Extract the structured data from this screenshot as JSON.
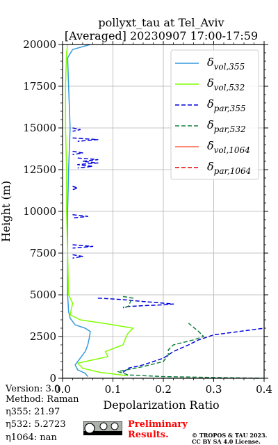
{
  "chart_data": {
    "type": "line",
    "title": [
      "pollyxt_tau at Tel_Aviv",
      "[Averaged] 20230907 17:00-17:59"
    ],
    "xlabel": "Depolarization Ratio",
    "ylabel": "Height (m)",
    "xlim": [
      0,
      0.4
    ],
    "ylim": [
      0,
      20000
    ],
    "xticks": [
      "0.0",
      "0.1",
      "0.2",
      "0.3",
      "0.4"
    ],
    "yticks": [
      "0",
      "2500",
      "5000",
      "7500",
      "10000",
      "12500",
      "15000",
      "17500",
      "20000"
    ],
    "grid": true,
    "legend_position": "top-right",
    "series": [
      {
        "name": "δvol,355",
        "label_main": "δ",
        "label_sub": "vol,355",
        "color": "#3399dd",
        "dash": "solid",
        "points": [
          [
            0.05,
            100
          ],
          [
            0.045,
            300
          ],
          [
            0.03,
            500
          ],
          [
            0.025,
            800
          ],
          [
            0.035,
            1200
          ],
          [
            0.045,
            1600
          ],
          [
            0.05,
            2000
          ],
          [
            0.053,
            2400
          ],
          [
            0.055,
            2800
          ],
          [
            0.045,
            3000
          ],
          [
            0.025,
            3200
          ],
          [
            0.015,
            3600
          ],
          [
            0.012,
            4000
          ],
          [
            0.01,
            5000
          ],
          [
            0.01,
            7500
          ],
          [
            0.01,
            10000
          ],
          [
            0.012,
            12500
          ],
          [
            0.015,
            15000
          ],
          [
            0.012,
            17500
          ],
          [
            0.01,
            19200
          ],
          [
            0.02,
            19700
          ],
          [
            0.055,
            20000
          ]
        ]
      },
      {
        "name": "δvol,532",
        "label_main": "δ",
        "label_sub": "vol,532",
        "color": "#80ff00",
        "dash": "solid",
        "points": [
          [
            0.13,
            150
          ],
          [
            0.075,
            350
          ],
          [
            0.04,
            600
          ],
          [
            0.03,
            900
          ],
          [
            0.06,
            1100
          ],
          [
            0.09,
            1300
          ],
          [
            0.085,
            1600
          ],
          [
            0.12,
            2000
          ],
          [
            0.125,
            2400
          ],
          [
            0.13,
            2700
          ],
          [
            0.14,
            3000
          ],
          [
            0.08,
            3300
          ],
          [
            0.035,
            3500
          ],
          [
            0.015,
            3800
          ],
          [
            0.02,
            4500
          ],
          [
            0.012,
            5000
          ],
          [
            0.01,
            7500
          ],
          [
            0.008,
            10000
          ],
          [
            0.008,
            12500
          ],
          [
            0.006,
            15000
          ],
          [
            0.006,
            17500
          ],
          [
            0.008,
            19500
          ],
          [
            0.01,
            20000
          ]
        ]
      },
      {
        "name": "δpar,355",
        "label_main": "δ",
        "label_sub": "par,355",
        "color": "#0000dd",
        "dash": "6 3",
        "points": [
          [
            0.12,
            350
          ],
          [
            0.13,
            600
          ],
          [
            0.16,
            800
          ],
          [
            0.18,
            1000
          ],
          [
            0.2,
            1200
          ],
          [
            0.22,
            1600
          ],
          [
            0.25,
            2000
          ],
          [
            0.27,
            2300
          ],
          [
            0.3,
            2600
          ],
          [
            0.35,
            2800
          ],
          [
            0.4,
            3000
          ]
        ]
      },
      {
        "name": "δpar,532",
        "label_main": "δ",
        "label_sub": "par,532",
        "color": "#128040",
        "dash": "6 3",
        "points": [
          [
            0.39,
            0
          ],
          [
            0.2,
            100
          ],
          [
            0.13,
            200
          ],
          [
            0.11,
            400
          ],
          [
            0.16,
            700
          ],
          [
            0.2,
            1000
          ],
          [
            0.21,
            1400
          ],
          [
            0.21,
            1700
          ],
          [
            0.22,
            2000
          ],
          [
            0.26,
            2300
          ],
          [
            0.28,
            2500
          ],
          [
            0.27,
            2800
          ],
          [
            0.25,
            3300
          ]
        ]
      },
      {
        "name": "δvol,1064",
        "label_main": "δ",
        "label_sub": "vol,1064",
        "color": "#ff6347",
        "dash": "solid",
        "points": []
      },
      {
        "name": "δpar,1064",
        "label_main": "δ",
        "label_sub": "par,1064",
        "color": "#dd0000",
        "dash": "6 3",
        "points": []
      }
    ],
    "extra_segments": [
      {
        "color": "#0000dd",
        "dash": "6 3",
        "points": [
          [
            0.07,
            4800
          ],
          [
            0.1,
            4750
          ],
          [
            0.125,
            4700
          ],
          [
            0.14,
            4650
          ],
          [
            0.16,
            4600
          ],
          [
            0.2,
            4500
          ],
          [
            0.22,
            4450
          ],
          [
            0.2,
            4400
          ],
          [
            0.16,
            4350
          ],
          [
            0.13,
            4300
          ],
          [
            0.12,
            4250
          ]
        ]
      },
      {
        "color": "#128040",
        "dash": "6 3",
        "points": [
          [
            0.12,
            4900
          ],
          [
            0.14,
            4800
          ],
          [
            0.135,
            4600
          ],
          [
            0.13,
            4300
          ],
          [
            0.12,
            4200
          ]
        ]
      },
      {
        "color": "#0000dd",
        "dash": "6 3",
        "points": [
          [
            0.02,
            15000
          ],
          [
            0.035,
            14900
          ],
          [
            0.02,
            14800
          ]
        ]
      },
      {
        "color": "#0000dd",
        "dash": "6 3",
        "points": [
          [
            0.02,
            14400
          ],
          [
            0.07,
            14300
          ],
          [
            0.03,
            14200
          ]
        ]
      },
      {
        "color": "#0000dd",
        "dash": "6 3",
        "points": [
          [
            0.02,
            13600
          ],
          [
            0.04,
            13500
          ],
          [
            0.02,
            13400
          ]
        ]
      },
      {
        "color": "#0000dd",
        "dash": "6 3",
        "points": [
          [
            0.03,
            13200
          ],
          [
            0.07,
            13100
          ],
          [
            0.04,
            13000
          ],
          [
            0.07,
            12900
          ],
          [
            0.03,
            12800
          ],
          [
            0.06,
            12700
          ],
          [
            0.03,
            12600
          ]
        ]
      },
      {
        "color": "#0000dd",
        "dash": "6 3",
        "points": [
          [
            0.02,
            11500
          ],
          [
            0.03,
            11400
          ],
          [
            0.02,
            11300
          ]
        ]
      },
      {
        "color": "#0000dd",
        "dash": "6 3",
        "points": [
          [
            0.02,
            9800
          ],
          [
            0.05,
            9700
          ],
          [
            0.02,
            9600
          ]
        ]
      },
      {
        "color": "#0000dd",
        "dash": "6 3",
        "points": [
          [
            0.02,
            8000
          ],
          [
            0.06,
            7900
          ],
          [
            0.02,
            7800
          ]
        ]
      },
      {
        "color": "#0000dd",
        "dash": "6 3",
        "points": [
          [
            0.02,
            7400
          ],
          [
            0.04,
            7300
          ],
          [
            0.02,
            7200
          ]
        ]
      }
    ]
  },
  "info": {
    "version": "Version: 3.0",
    "method": "Method: Raman",
    "eta355": "η355:  21.97",
    "eta532": "η532: 5.2723",
    "eta1064": "η1064:    nan"
  },
  "footer": {
    "preliminary_line1": "Preliminary",
    "preliminary_line2": "Results.",
    "copyright_line1": "© TROPOS & TAU 2023.",
    "copyright_line2": "CC BY SA 4.0 License.",
    "cc_badge": "cc-by-sa-logo"
  }
}
